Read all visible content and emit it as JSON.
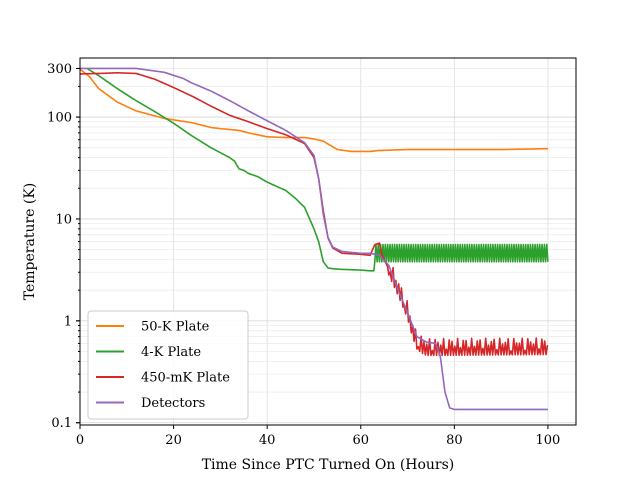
{
  "chart_data": {
    "type": "line",
    "title": "",
    "xlabel": "Time Since PTC Turned On (Hours)",
    "ylabel": "Temperature (K)",
    "xlim": [
      0,
      106
    ],
    "ylim": [
      0.095,
      380
    ],
    "yscale": "log",
    "grid": true,
    "legend_position": "lower-left",
    "x_ticks": [
      0,
      20,
      40,
      60,
      80,
      100
    ],
    "x_tick_labels": [
      "0",
      "20",
      "40",
      "60",
      "80",
      "100"
    ],
    "y_ticks": [
      0.1,
      1,
      10,
      100,
      300
    ],
    "y_tick_labels": [
      "0.1",
      "1",
      "10",
      "100",
      "300"
    ],
    "series": [
      {
        "name": "50-K Plate",
        "color": "#ff7f0e",
        "x": [
          0,
          2,
          4,
          8,
          12,
          18,
          24,
          28,
          30,
          34,
          36,
          40,
          44,
          48,
          50,
          52,
          55,
          58,
          62,
          64,
          70,
          80,
          90,
          100
        ],
        "y": [
          295,
          250,
          190,
          140,
          115,
          97,
          88,
          79,
          77,
          74,
          70,
          64,
          63,
          63,
          61,
          58,
          48,
          46,
          46,
          47,
          48,
          48,
          48,
          49
        ]
      },
      {
        "name": "4-K Plate",
        "color": "#2ca02c",
        "x": [
          1.5,
          4,
          8,
          12,
          16,
          20,
          24,
          28,
          32,
          33,
          34,
          35,
          36,
          38,
          40,
          44,
          46,
          48,
          50,
          51,
          52,
          53,
          54,
          56,
          60,
          62,
          62.8,
          63,
          100
        ],
        "y": [
          300,
          255,
          190,
          145,
          113,
          87,
          65,
          50,
          40,
          37,
          31,
          30,
          28,
          26,
          23,
          19,
          16,
          13,
          8,
          6,
          3.8,
          3.3,
          3.25,
          3.2,
          3.15,
          3.1,
          3.1,
          4.5,
          4.6
        ],
        "oscillation": {
          "x_start": 63,
          "x_end": 100,
          "low": 3.8,
          "high": 5.6,
          "period_hours": 0.5
        }
      },
      {
        "name": "450-mK Plate",
        "color": "#d62728",
        "x": [
          0,
          4,
          8,
          12,
          16,
          20,
          24,
          28,
          32,
          36,
          40,
          44,
          48,
          50,
          51,
          52,
          53,
          54,
          56,
          60,
          62,
          63,
          64,
          64.5,
          66,
          68,
          70,
          71,
          72,
          73,
          74,
          100
        ],
        "y": [
          265,
          268,
          272,
          268,
          235,
          195,
          160,
          128,
          104,
          90,
          77,
          67,
          55,
          40,
          25,
          12,
          6.5,
          5.2,
          4.6,
          4.5,
          4.4,
          5.6,
          5.8,
          4.5,
          3.2,
          2,
          1.2,
          0.8,
          0.6,
          0.55,
          0.52,
          0.53
        ],
        "oscillation": {
          "x_start": 66,
          "x_end": 100,
          "low_ratio": 0.88,
          "high_ratio": 1.12,
          "period_hours": 0.6
        }
      },
      {
        "name": "Detectors",
        "color": "#9467bd",
        "x": [
          0,
          4,
          8,
          12,
          18,
          22,
          24,
          28,
          32,
          36,
          40,
          44,
          48,
          50,
          51,
          52,
          53,
          54,
          56,
          60,
          62,
          64,
          66,
          68,
          70,
          72,
          74,
          76,
          77,
          78,
          79,
          80,
          90,
          100
        ],
        "y": [
          300,
          300,
          300,
          300,
          275,
          240,
          215,
          180,
          145,
          115,
          92,
          74,
          56,
          42,
          25,
          11,
          6.6,
          5.3,
          4.8,
          4.6,
          4.6,
          4.4,
          3.5,
          2,
          1.2,
          0.7,
          0.62,
          0.6,
          0.45,
          0.2,
          0.14,
          0.135,
          0.135,
          0.135
        ]
      }
    ]
  }
}
